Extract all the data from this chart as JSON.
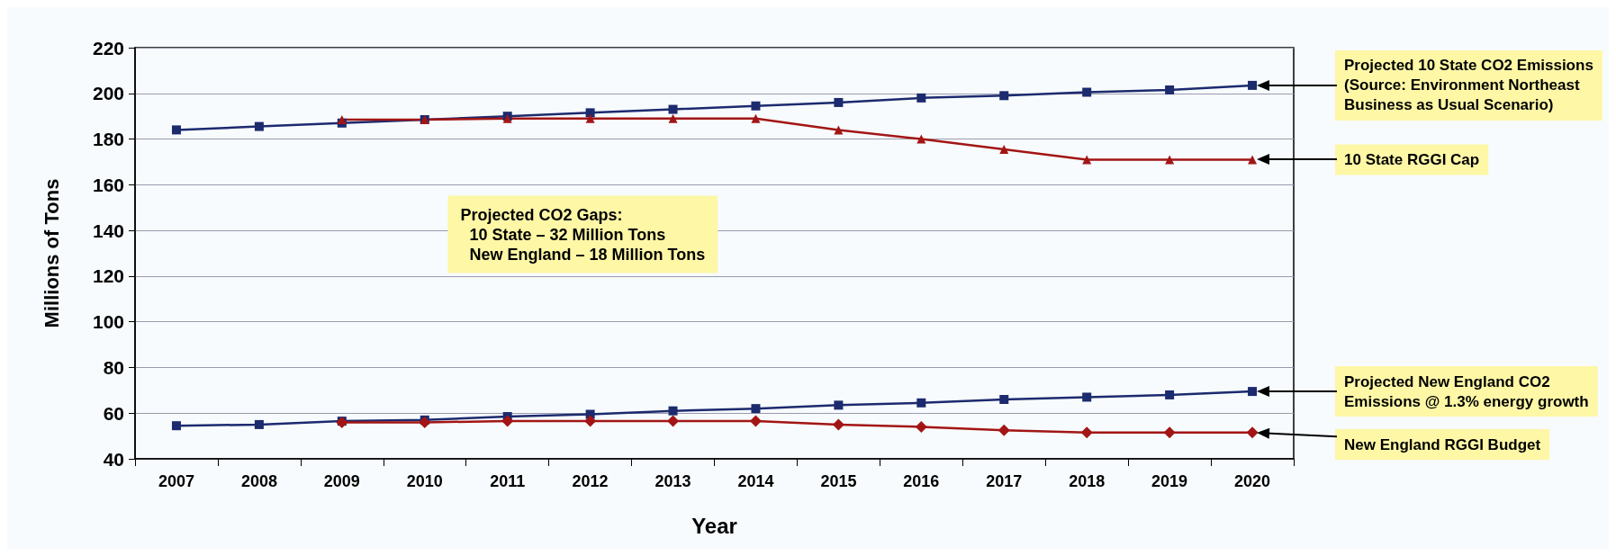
{
  "chart_data": {
    "type": "line",
    "xlabel": "Year",
    "ylabel": "Millions of Tons",
    "categories": [
      "2007",
      "2008",
      "2009",
      "2010",
      "2011",
      "2012",
      "2013",
      "2014",
      "2015",
      "2016",
      "2017",
      "2018",
      "2019",
      "2020"
    ],
    "series": [
      {
        "color": "#1c2a6e",
        "marker": "square",
        "values": [
          184,
          185.5,
          187,
          188.5,
          190,
          191.5,
          193,
          194.5,
          196,
          198,
          199,
          200.5,
          201.5,
          203.5
        ]
      },
      {
        "color": "#a31515",
        "marker": "triangle",
        "values": [
          null,
          null,
          188.5,
          188.5,
          189,
          189,
          189,
          189,
          184,
          180,
          175.5,
          171,
          171,
          171
        ]
      },
      {
        "color": "#1c2a6e",
        "marker": "square",
        "values": [
          54.5,
          55,
          56.5,
          57,
          58.5,
          59.5,
          61,
          62,
          63.5,
          64.5,
          66,
          67,
          68,
          69.5
        ]
      },
      {
        "color": "#a31515",
        "marker": "diamond",
        "values": [
          null,
          null,
          56,
          56,
          56.5,
          56.5,
          56.5,
          56.5,
          55,
          54,
          52.5,
          51.5,
          51.5,
          51.5
        ]
      }
    ],
    "ylim": [
      40,
      220
    ],
    "yticks": [
      40,
      60,
      80,
      100,
      120,
      140,
      160,
      180,
      200,
      220
    ],
    "grid": "y",
    "line_style": "solid",
    "annotations": [
      "Projected 10 State CO2 Emissions\n(Source: Environment Northeast\nBusiness as Usual Scenario)",
      "10 State RGGI Cap",
      "Projected New England CO2\nEmissions @ 1.3% energy growth",
      "New England RGGI Budget",
      "Projected CO2 Gaps:\n  10 State – 32 Million Tons\n  New England – 18 Million Tons"
    ]
  }
}
